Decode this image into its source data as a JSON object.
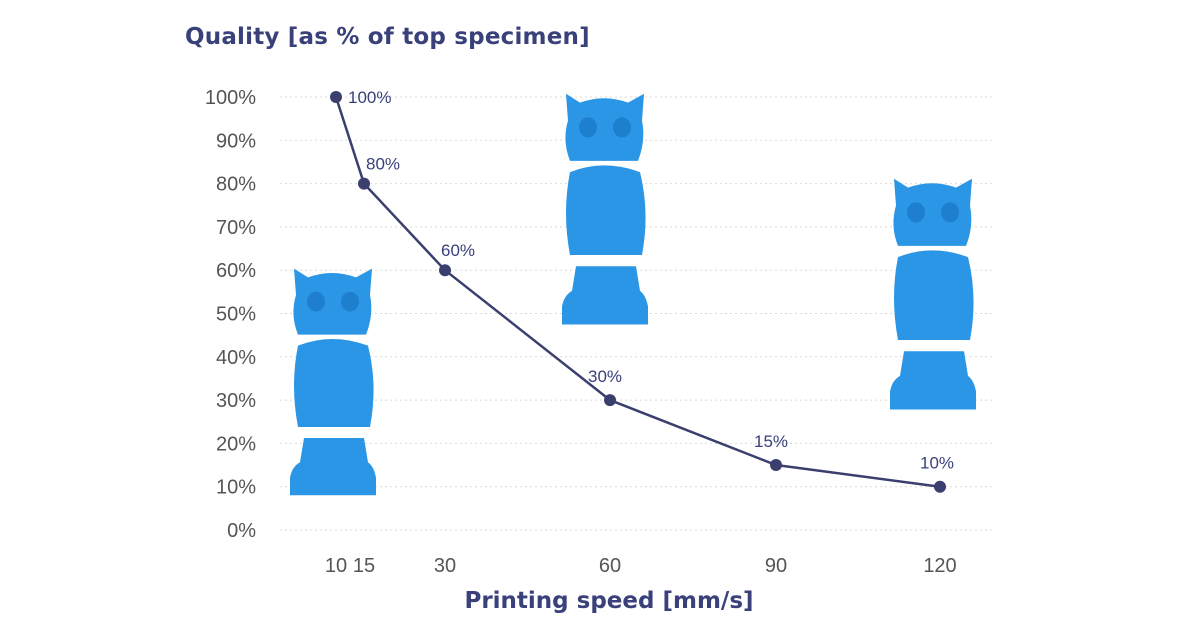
{
  "chart_data": {
    "type": "line",
    "ylabel": "Quality [as % of top specimen]",
    "xlabel": "Printing speed [mm/s]",
    "x": [
      10,
      15,
      30,
      60,
      90,
      120
    ],
    "x_tick_labels": [
      "10",
      "15",
      "30",
      "60",
      "90",
      "120"
    ],
    "y_tick_labels": [
      "0%",
      "10%",
      "20%",
      "30%",
      "40%",
      "50%",
      "60%",
      "70%",
      "80%",
      "90%",
      "100%"
    ],
    "series": [
      {
        "values": [
          100,
          80,
          60,
          30,
          15,
          10
        ]
      }
    ],
    "data_labels": [
      "100%",
      "80%",
      "60%",
      "30%",
      "15%",
      "10%"
    ],
    "ylim": [
      0,
      100
    ],
    "grid": true,
    "line_color": "#3b3f6e",
    "text_color": "#39407a",
    "grid_color": "#d9d9d9",
    "images": [
      {
        "name": "owl-specimen-low-speed",
        "color": "#2b96e6"
      },
      {
        "name": "owl-specimen-mid-speed",
        "color": "#2b96e6"
      },
      {
        "name": "owl-specimen-high-speed",
        "color": "#2b96e6"
      }
    ]
  }
}
